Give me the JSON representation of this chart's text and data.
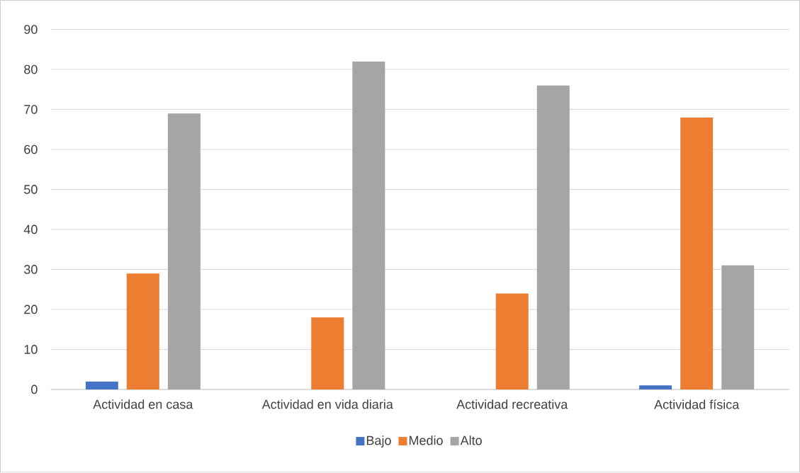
{
  "chart_data": {
    "type": "bar",
    "categories": [
      "Actividad en casa",
      "Actividad en vida diaria",
      "Actividad recreativa",
      "Actividad física"
    ],
    "series": [
      {
        "name": "Bajo",
        "color": "#4472c4",
        "values": [
          2,
          0,
          0,
          1
        ]
      },
      {
        "name": "Medio",
        "color": "#ed7d31",
        "values": [
          29,
          18,
          24,
          68
        ]
      },
      {
        "name": "Alto",
        "color": "#a5a5a5",
        "values": [
          69,
          82,
          76,
          31
        ]
      }
    ],
    "ylim": [
      0,
      90
    ],
    "yticks": [
      0,
      10,
      20,
      30,
      40,
      50,
      60,
      70,
      80,
      90
    ],
    "grid": "y",
    "legend": "bottom"
  }
}
